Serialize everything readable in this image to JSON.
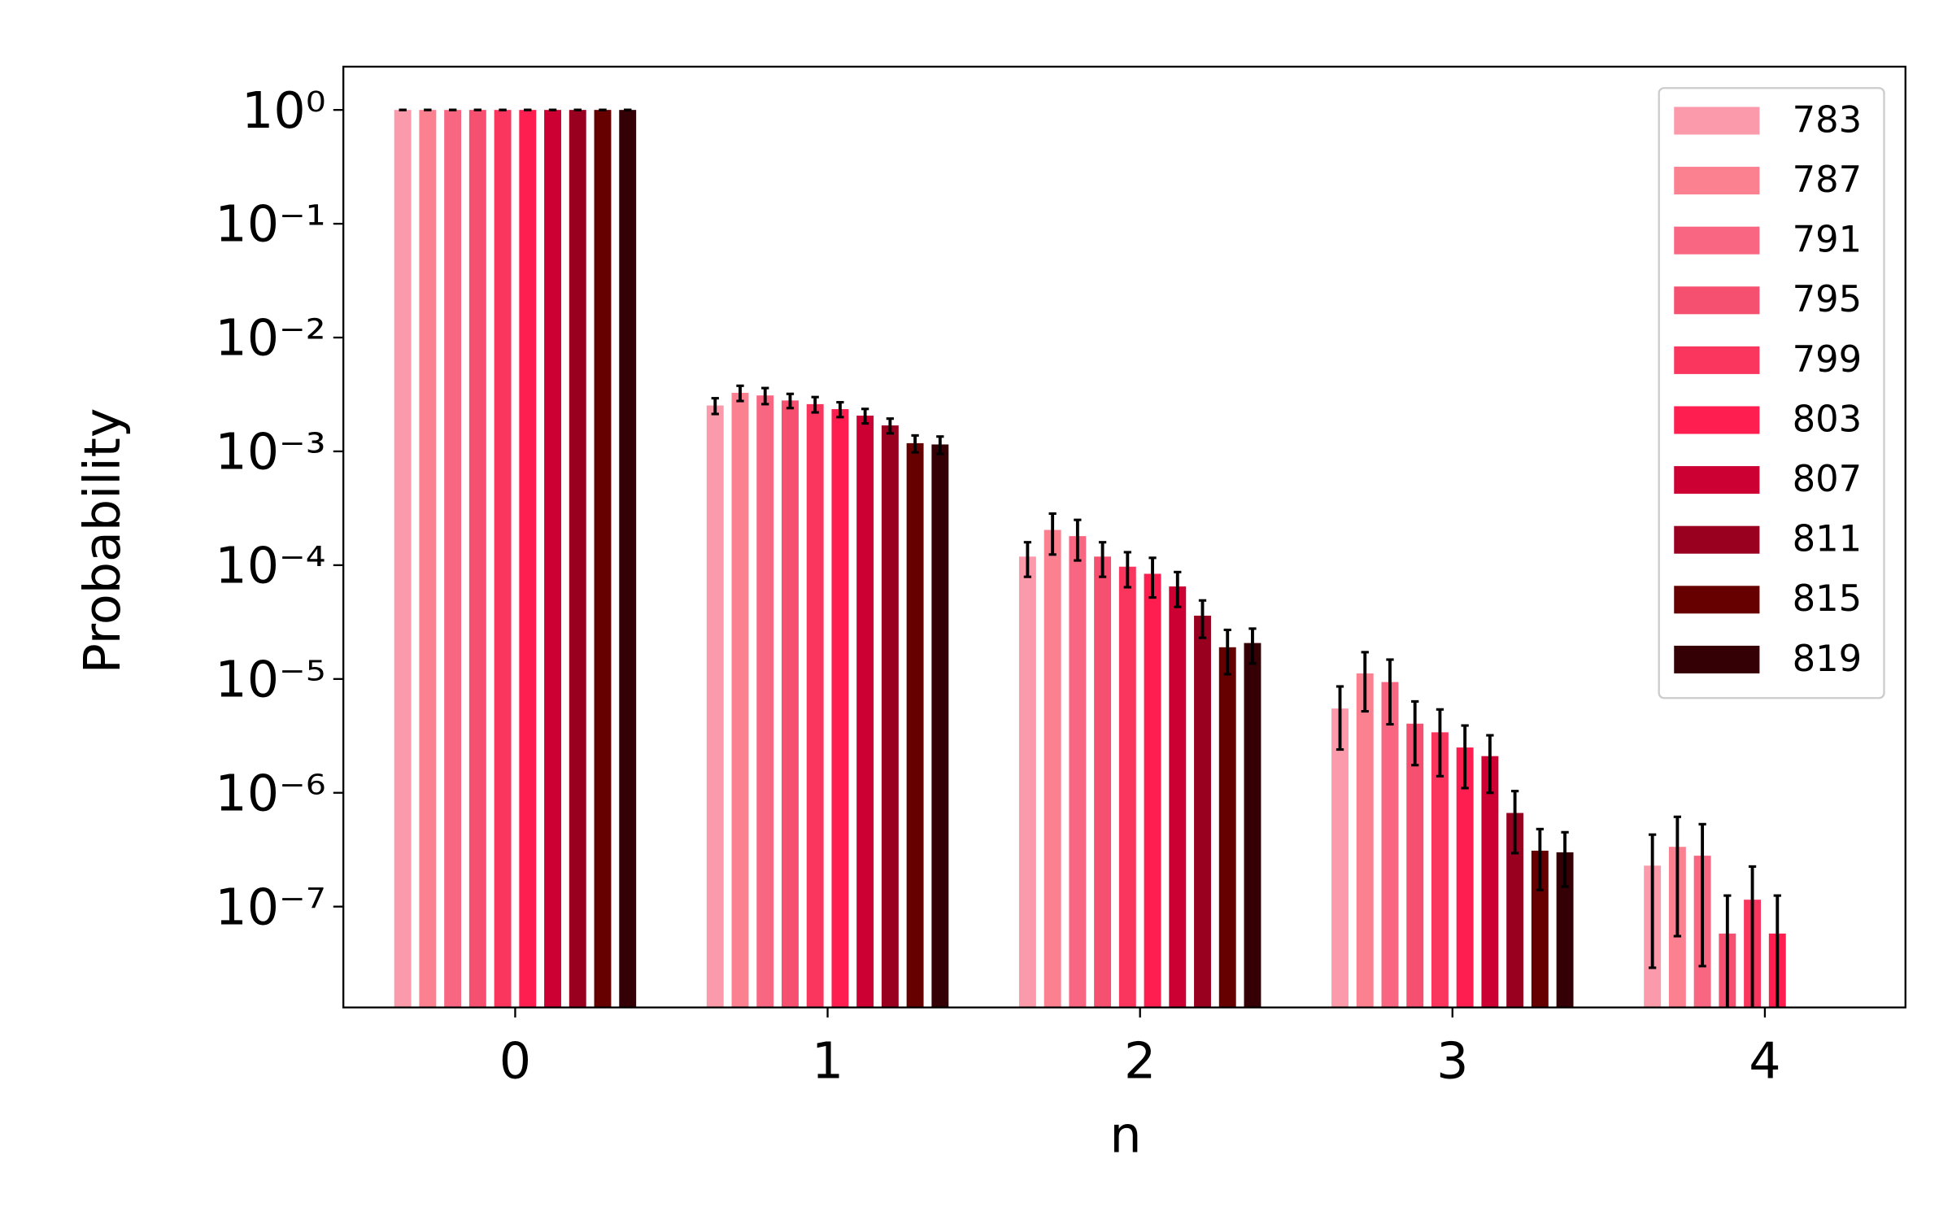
{
  "chart_data": {
    "type": "bar",
    "log_y": true,
    "xlabel": "n",
    "ylabel": "Probability",
    "x": [
      0,
      1,
      2,
      3,
      4
    ],
    "xlim": [
      -0.55,
      4.45
    ],
    "xticks": [
      0,
      1,
      2,
      3,
      4
    ],
    "ylim": [
      1.3e-08,
      2.4
    ],
    "yticks": [
      {
        "value": 1,
        "label": "10⁰"
      },
      {
        "value": 0.1,
        "label": "10⁻¹"
      },
      {
        "value": 0.01,
        "label": "10⁻²"
      },
      {
        "value": 0.001,
        "label": "10⁻³"
      },
      {
        "value": 0.0001,
        "label": "10⁻⁴"
      },
      {
        "value": 1e-05,
        "label": "10⁻⁵"
      },
      {
        "value": 1e-06,
        "label": "10⁻⁶"
      },
      {
        "value": 1e-07,
        "label": "10⁻⁷"
      }
    ],
    "legend": "upper right",
    "series": [
      {
        "name": "783",
        "color": "#fb9aab",
        "values": [
          1,
          0.00253,
          0.000119,
          5.5e-06,
          2.29e-07
        ],
        "errors": [
          0,
          0.0004,
          4e-05,
          3.1e-06,
          2e-07
        ]
      },
      {
        "name": "787",
        "color": "#fb8090",
        "values": [
          1,
          0.00327,
          0.000204,
          1.12e-05,
          3.35e-07
        ],
        "errors": [
          0,
          0.0005,
          8e-05,
          6e-06,
          2.8e-07
        ]
      },
      {
        "name": "791",
        "color": "#f96682",
        "values": [
          1,
          0.0031,
          0.00018,
          9.4e-06,
          2.8e-07
        ],
        "errors": [
          0,
          0.0005,
          7e-05,
          5.4e-06,
          2.5e-07
        ]
      },
      {
        "name": "795",
        "color": "#f5506f",
        "values": [
          1,
          0.0028,
          0.000119,
          4.05e-06,
          5.8e-08
        ],
        "errors": [
          0,
          0.0004,
          4e-05,
          2.3e-06,
          6.7e-08
        ]
      },
      {
        "name": "799",
        "color": "#fb365e",
        "values": [
          1,
          0.0026,
          9.7e-05,
          3.4e-06,
          1.15e-07
        ],
        "errors": [
          0,
          0.0004,
          3.3e-05,
          2e-06,
          1.1e-07
        ]
      },
      {
        "name": "803",
        "color": "#fe1e4f",
        "values": [
          1,
          0.00235,
          8.4e-05,
          2.5e-06,
          5.8e-08
        ],
        "errors": [
          0,
          0.00035,
          3.2e-05,
          1.4e-06,
          6.7e-08
        ]
      },
      {
        "name": "807",
        "color": "#cc0033",
        "values": [
          1,
          0.00206,
          6.5e-05,
          2.1e-06,
          null
        ],
        "errors": [
          0,
          0.0003,
          2.2e-05,
          1.1e-06,
          null
        ]
      },
      {
        "name": "811",
        "color": "#990020",
        "values": [
          1,
          0.00169,
          3.6e-05,
          6.65e-07,
          null
        ],
        "errors": [
          0,
          0.00025,
          1.3e-05,
          3.7e-07,
          null
        ]
      },
      {
        "name": "815",
        "color": "#660000",
        "values": [
          1,
          0.00118,
          1.9e-05,
          3.1e-07,
          null
        ],
        "errors": [
          0,
          0.0002,
          8e-06,
          1.7e-07,
          null
        ]
      },
      {
        "name": "819",
        "color": "#350005",
        "values": [
          1,
          0.00115,
          2.07e-05,
          3e-07,
          null
        ],
        "errors": [
          0,
          0.0002,
          7e-06,
          1.5e-07,
          null
        ]
      }
    ]
  }
}
